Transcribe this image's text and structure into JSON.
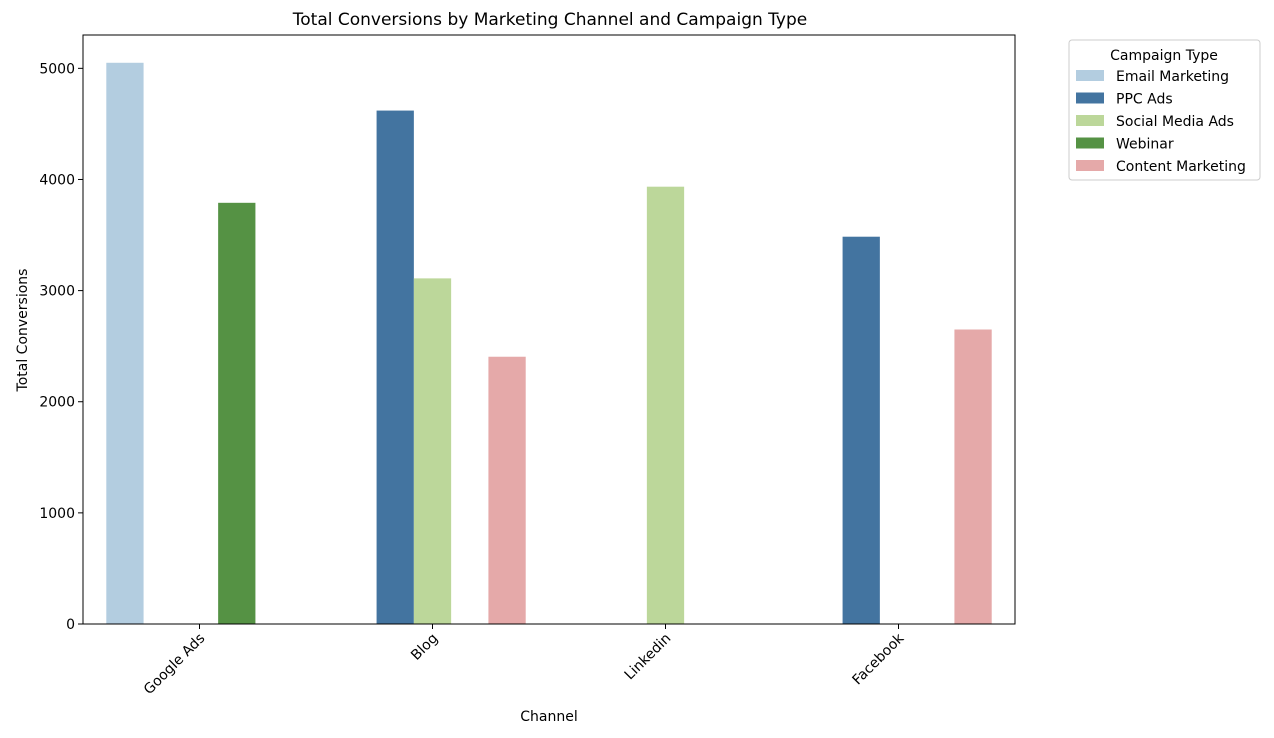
{
  "chart_data": {
    "type": "bar",
    "title": "Total Conversions by Marketing Channel and Campaign Type",
    "xlabel": "Channel",
    "ylabel": "Total Conversions",
    "categories": [
      "Google Ads",
      "Blog",
      "Linkedin",
      "Facebook"
    ],
    "ylim": [
      0,
      5300
    ],
    "yticks": [
      0,
      1000,
      2000,
      3000,
      4000,
      5000
    ],
    "grid": false,
    "legend": {
      "title": "Campaign Type",
      "placement": "outside-top-right"
    },
    "series": [
      {
        "name": "Email Marketing",
        "color": "#b3cde0",
        "values": [
          5050,
          null,
          null,
          null
        ]
      },
      {
        "name": "PPC Ads",
        "color": "#4374a0",
        "values": [
          null,
          4620,
          null,
          3485
        ]
      },
      {
        "name": "Social Media Ads",
        "color": "#bcd79a",
        "values": [
          null,
          3110,
          3935,
          null
        ]
      },
      {
        "name": "Webinar",
        "color": "#559244",
        "values": [
          3790,
          null,
          null,
          null
        ]
      },
      {
        "name": "Content Marketing",
        "color": "#e5a9a9",
        "values": [
          null,
          2405,
          null,
          2650
        ]
      }
    ]
  }
}
